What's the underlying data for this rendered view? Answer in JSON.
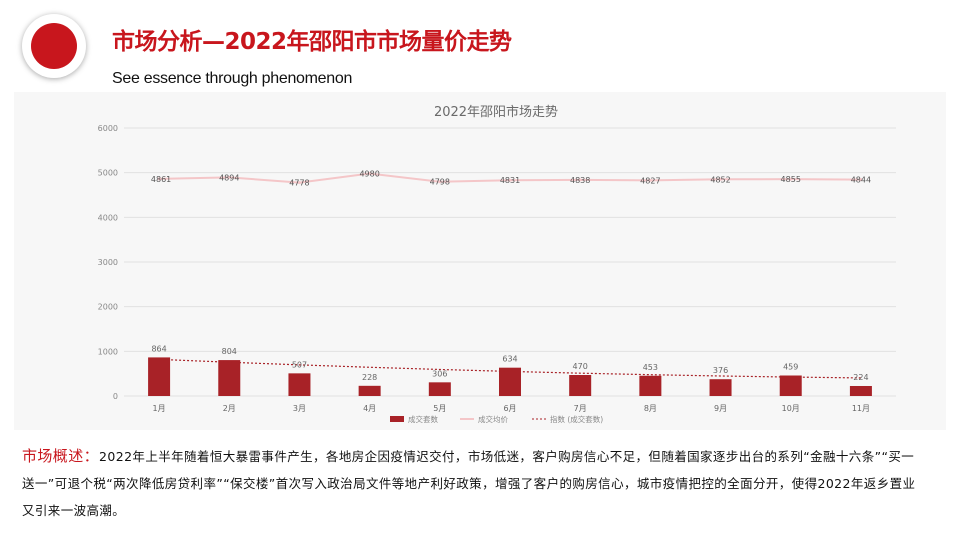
{
  "header": {
    "title": "市场分析—2022年邵阳市市场量价走势",
    "subtitle": "See essence through phenomenon"
  },
  "colors": {
    "brand_red": "#c8161d",
    "bar": "#a82227",
    "price_line": "#f4c6c8",
    "trend_line": "#a82227"
  },
  "chart_data": {
    "type": "bar",
    "title": "2022年邵阳市场走势",
    "categories": [
      "1月",
      "2月",
      "3月",
      "4月",
      "5月",
      "6月",
      "7月",
      "8月",
      "9月",
      "10月",
      "11月"
    ],
    "series": [
      {
        "name": "成交套数",
        "kind": "bar",
        "values": [
          864,
          804,
          507,
          228,
          306,
          634,
          470,
          453,
          376,
          459,
          224
        ]
      },
      {
        "name": "成交均价",
        "kind": "line",
        "values": [
          4861,
          4894,
          4778,
          4980,
          4798,
          4831,
          4838,
          4827,
          4852,
          4855,
          4844
        ]
      },
      {
        "name": "指数 (成交套数)",
        "kind": "trend",
        "values": [
          820,
          756,
          697,
          643,
          594,
          550,
          511,
          477,
          448,
          424,
          405
        ]
      }
    ],
    "yticks": [
      "6000",
      "5000",
      "4000",
      "3000",
      "2000",
      "1000",
      "0"
    ],
    "ylim": [
      0,
      6000
    ],
    "legend": [
      "成交套数",
      "成交均价",
      "指数 (成交套数)"
    ],
    "legend_position": "bottom"
  },
  "overview": {
    "label": "市场概述：",
    "text": "2022年上半年随着恒大暴雷事件产生，各地房企因疫情迟交付，市场低迷，客户购房信心不足，但随着国家逐步出台的系列“金融十六条”“买一送一”可退个税“两次降低房贷利率”“保交楼”首次写入政治局文件等地产利好政策，增强了客户的购房信心，城市疫情把控的全面分开，使得2022年返乡置业又引来一波高潮。"
  }
}
